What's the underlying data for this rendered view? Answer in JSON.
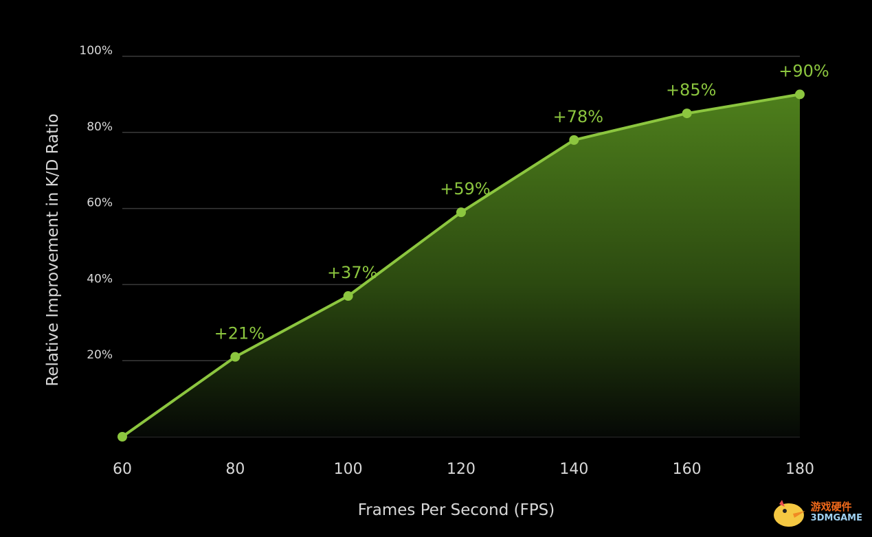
{
  "chart_data": {
    "type": "area",
    "x": [
      60,
      80,
      100,
      120,
      140,
      160,
      180
    ],
    "values": [
      0,
      21,
      37,
      59,
      78,
      85,
      90
    ],
    "data_labels": [
      "",
      "+21%",
      "+37%",
      "+59%",
      "+78%",
      "+85%",
      "+90%"
    ],
    "x_ticks": [
      "60",
      "80",
      "100",
      "120",
      "140",
      "160",
      "180"
    ],
    "y_ticks": [
      "20%",
      "40%",
      "60%",
      "80%",
      "100%"
    ],
    "y_tick_values": [
      20,
      40,
      60,
      80,
      100
    ],
    "xlabel": "Frames Per Second (FPS)",
    "ylabel": "Relative Improvement in K/D Ratio",
    "xlim": [
      60,
      180
    ],
    "ylim": [
      0,
      100
    ],
    "grid": true,
    "colors": {
      "line": "#8cc63f",
      "area_top": "#4e7f1c",
      "background": "#000000",
      "grid": "#3a3a3a"
    }
  },
  "watermark": {
    "cn": "游戏硬件",
    "en": "3DMGAME"
  }
}
